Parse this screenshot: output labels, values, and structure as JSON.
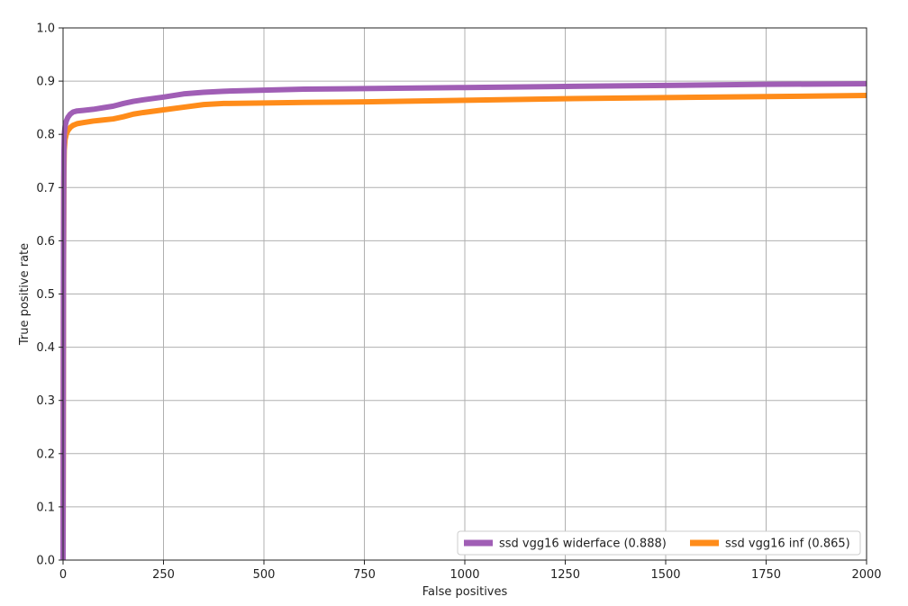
{
  "chart_data": {
    "type": "line",
    "title": "",
    "xlabel": "False positives",
    "ylabel": "True positive rate",
    "xlim": [
      0,
      2000
    ],
    "ylim": [
      0.0,
      1.0
    ],
    "xticks": [
      0,
      250,
      500,
      750,
      1000,
      1250,
      1500,
      1750,
      2000
    ],
    "xtick_labels": [
      "0",
      "250",
      "500",
      "750",
      "1000",
      "1250",
      "1500",
      "1750",
      "2000"
    ],
    "yticks": [
      0.0,
      0.1,
      0.2,
      0.3,
      0.4,
      0.5,
      0.6,
      0.7,
      0.8,
      0.9,
      1.0
    ],
    "ytick_labels": [
      "0.0",
      "0.1",
      "0.2",
      "0.3",
      "0.4",
      "0.5",
      "0.6",
      "0.7",
      "0.8",
      "0.9",
      "1.0"
    ],
    "grid": true,
    "legend_location": "bottom-right",
    "series": [
      {
        "name": "ssd vgg16 widerface (0.888)",
        "color": "#a05eb5",
        "x": [
          0,
          1,
          2,
          3,
          5,
          8,
          12,
          18,
          25,
          35,
          50,
          75,
          100,
          125,
          150,
          175,
          200,
          250,
          300,
          350,
          400,
          500,
          600,
          750,
          1000,
          1250,
          1500,
          1750,
          2000
        ],
        "y": [
          0.0,
          0.55,
          0.76,
          0.8,
          0.815,
          0.825,
          0.832,
          0.838,
          0.842,
          0.844,
          0.845,
          0.847,
          0.85,
          0.853,
          0.858,
          0.862,
          0.865,
          0.87,
          0.876,
          0.879,
          0.881,
          0.883,
          0.885,
          0.886,
          0.888,
          0.89,
          0.892,
          0.894,
          0.895
        ]
      },
      {
        "name": "ssd vgg16 inf (0.865)",
        "color": "#ff8c1a",
        "x": [
          0,
          1,
          2,
          3,
          5,
          8,
          12,
          18,
          25,
          35,
          50,
          75,
          100,
          125,
          150,
          175,
          200,
          250,
          300,
          350,
          400,
          500,
          600,
          750,
          1000,
          1250,
          1500,
          1750,
          2000
        ],
        "y": [
          0.0,
          0.5,
          0.72,
          0.77,
          0.79,
          0.8,
          0.807,
          0.813,
          0.817,
          0.82,
          0.822,
          0.825,
          0.827,
          0.829,
          0.833,
          0.838,
          0.841,
          0.846,
          0.851,
          0.856,
          0.858,
          0.859,
          0.86,
          0.861,
          0.864,
          0.867,
          0.869,
          0.871,
          0.873
        ]
      }
    ]
  }
}
